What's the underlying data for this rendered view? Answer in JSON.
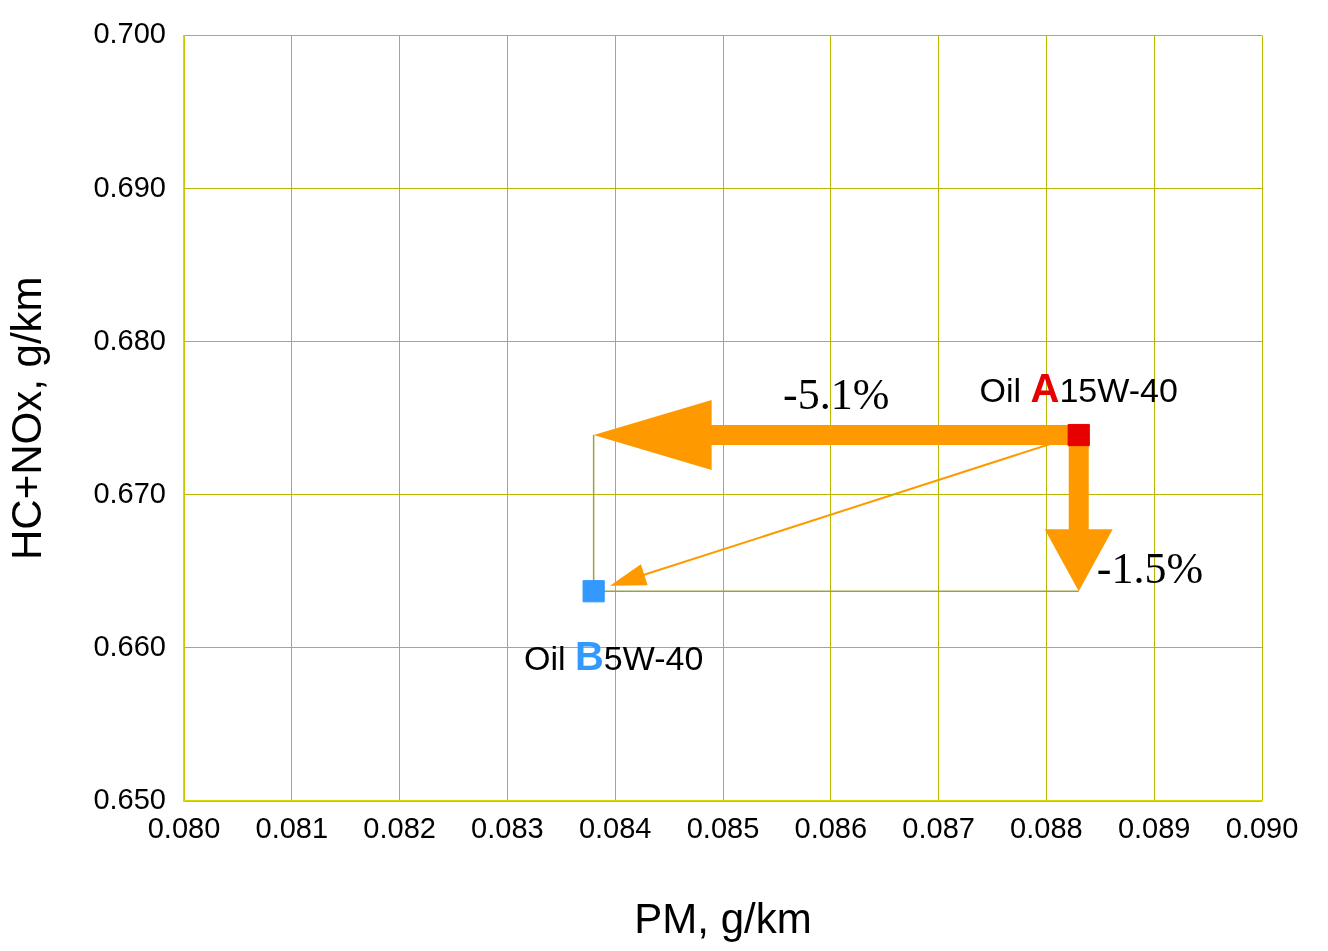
{
  "chart_data": {
    "type": "scatter",
    "xlabel": "PM, g/km",
    "ylabel": "HC+NOx, g/km",
    "series": [
      {
        "name": "Oil A15W-40",
        "color": "#e60000",
        "x": [
          0.0883
        ],
        "values": [
          0.6739
        ]
      },
      {
        "name": "Oil B5W-40",
        "color": "#3399ff",
        "x": [
          0.0838
        ],
        "values": [
          0.6637
        ]
      }
    ],
    "xlim": [
      0.08,
      0.09
    ],
    "xticks": [
      {
        "value": 0.08,
        "label": "0.080"
      },
      {
        "value": 0.081,
        "label": "0.081"
      },
      {
        "value": 0.082,
        "label": "0.082"
      },
      {
        "value": 0.083,
        "label": "0.083"
      },
      {
        "value": 0.084,
        "label": "0.084"
      },
      {
        "value": 0.085,
        "label": "0.085"
      },
      {
        "value": 0.086,
        "label": "0.086"
      },
      {
        "value": 0.087,
        "label": "0.087"
      },
      {
        "value": 0.088,
        "label": "0.088"
      },
      {
        "value": 0.089,
        "label": "0.089"
      },
      {
        "value": 0.09,
        "label": "0.090"
      }
    ],
    "ylim": [
      0.65,
      0.7
    ],
    "yticks": [
      {
        "value": 0.65,
        "label": "0.650"
      },
      {
        "value": 0.66,
        "label": "0.660"
      },
      {
        "value": 0.67,
        "label": "0.670"
      },
      {
        "value": 0.68,
        "label": "0.680"
      },
      {
        "value": 0.69,
        "label": "0.690"
      },
      {
        "value": 0.7,
        "label": "0.700"
      }
    ],
    "annotations": [
      "-5.1%",
      {
        "text": "-1.5%",
        "x": 0.0883,
        "y": 0.6739
      }
    ],
    "grid": true,
    "legend": false,
    "marker": "square"
  }
}
